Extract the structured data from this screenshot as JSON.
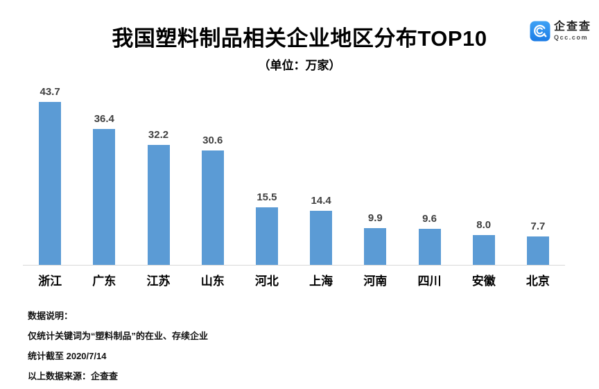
{
  "header": {
    "title": "我国塑料制品相关企业地区分布TOP10",
    "subtitle": "（单位：万家）",
    "logo": {
      "name": "企查查",
      "domain": "Qcc.com",
      "brand_color": "#2188ea"
    }
  },
  "chart_data": {
    "type": "bar",
    "title": "我国塑料制品相关企业地区分布TOP10",
    "subtitle": "（单位：万家）",
    "unit": "万家",
    "categories": [
      "浙江",
      "广东",
      "江苏",
      "山东",
      "河北",
      "上海",
      "河南",
      "四川",
      "安徽",
      "北京"
    ],
    "values": [
      43.7,
      36.4,
      32.2,
      30.6,
      15.5,
      14.4,
      9.9,
      9.6,
      8.0,
      7.7
    ],
    "value_labels": [
      "43.7",
      "36.4",
      "32.2",
      "30.6",
      "15.5",
      "14.4",
      "9.9",
      "9.6",
      "8.0",
      "7.7"
    ],
    "xlabel": "",
    "ylabel": "",
    "ylim": [
      0,
      48.8
    ],
    "grid": false,
    "legend": false,
    "bar_color": "#5b9bd5",
    "axis_line_color": "#d9d9d9",
    "value_label_color": "#404040"
  },
  "footer": {
    "lines": [
      "数据说明：",
      "仅统计关键词为“塑料制品”的在业、存续企业",
      "统计截至 2020/7/14",
      "以上数据来源：企查查"
    ]
  }
}
